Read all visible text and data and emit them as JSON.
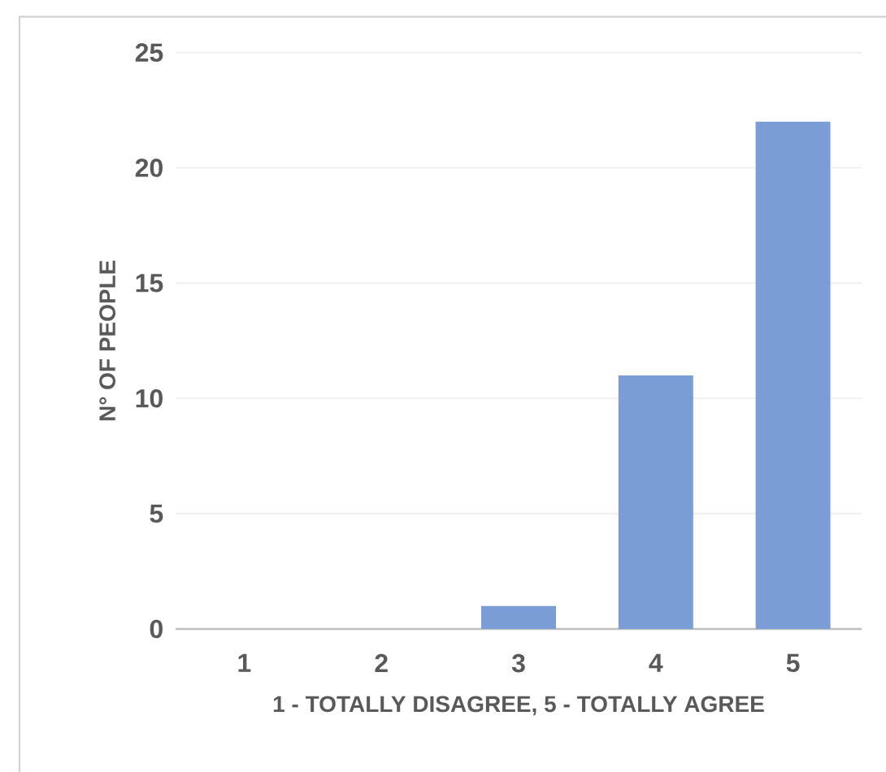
{
  "chart_data": {
    "type": "bar",
    "xlabel": "1 - TOTALLY DISAGREE, 5 - TOTALLY AGREE",
    "ylabel": "N° OF PEOPLE",
    "categories": [
      "1",
      "2",
      "3",
      "4",
      "5"
    ],
    "values": [
      0,
      0,
      1,
      11,
      22
    ],
    "color": "#7b9dd6",
    "ylim": [
      0,
      25
    ],
    "yticks": [
      0,
      5,
      10,
      15,
      20,
      25
    ],
    "grid": "y"
  }
}
